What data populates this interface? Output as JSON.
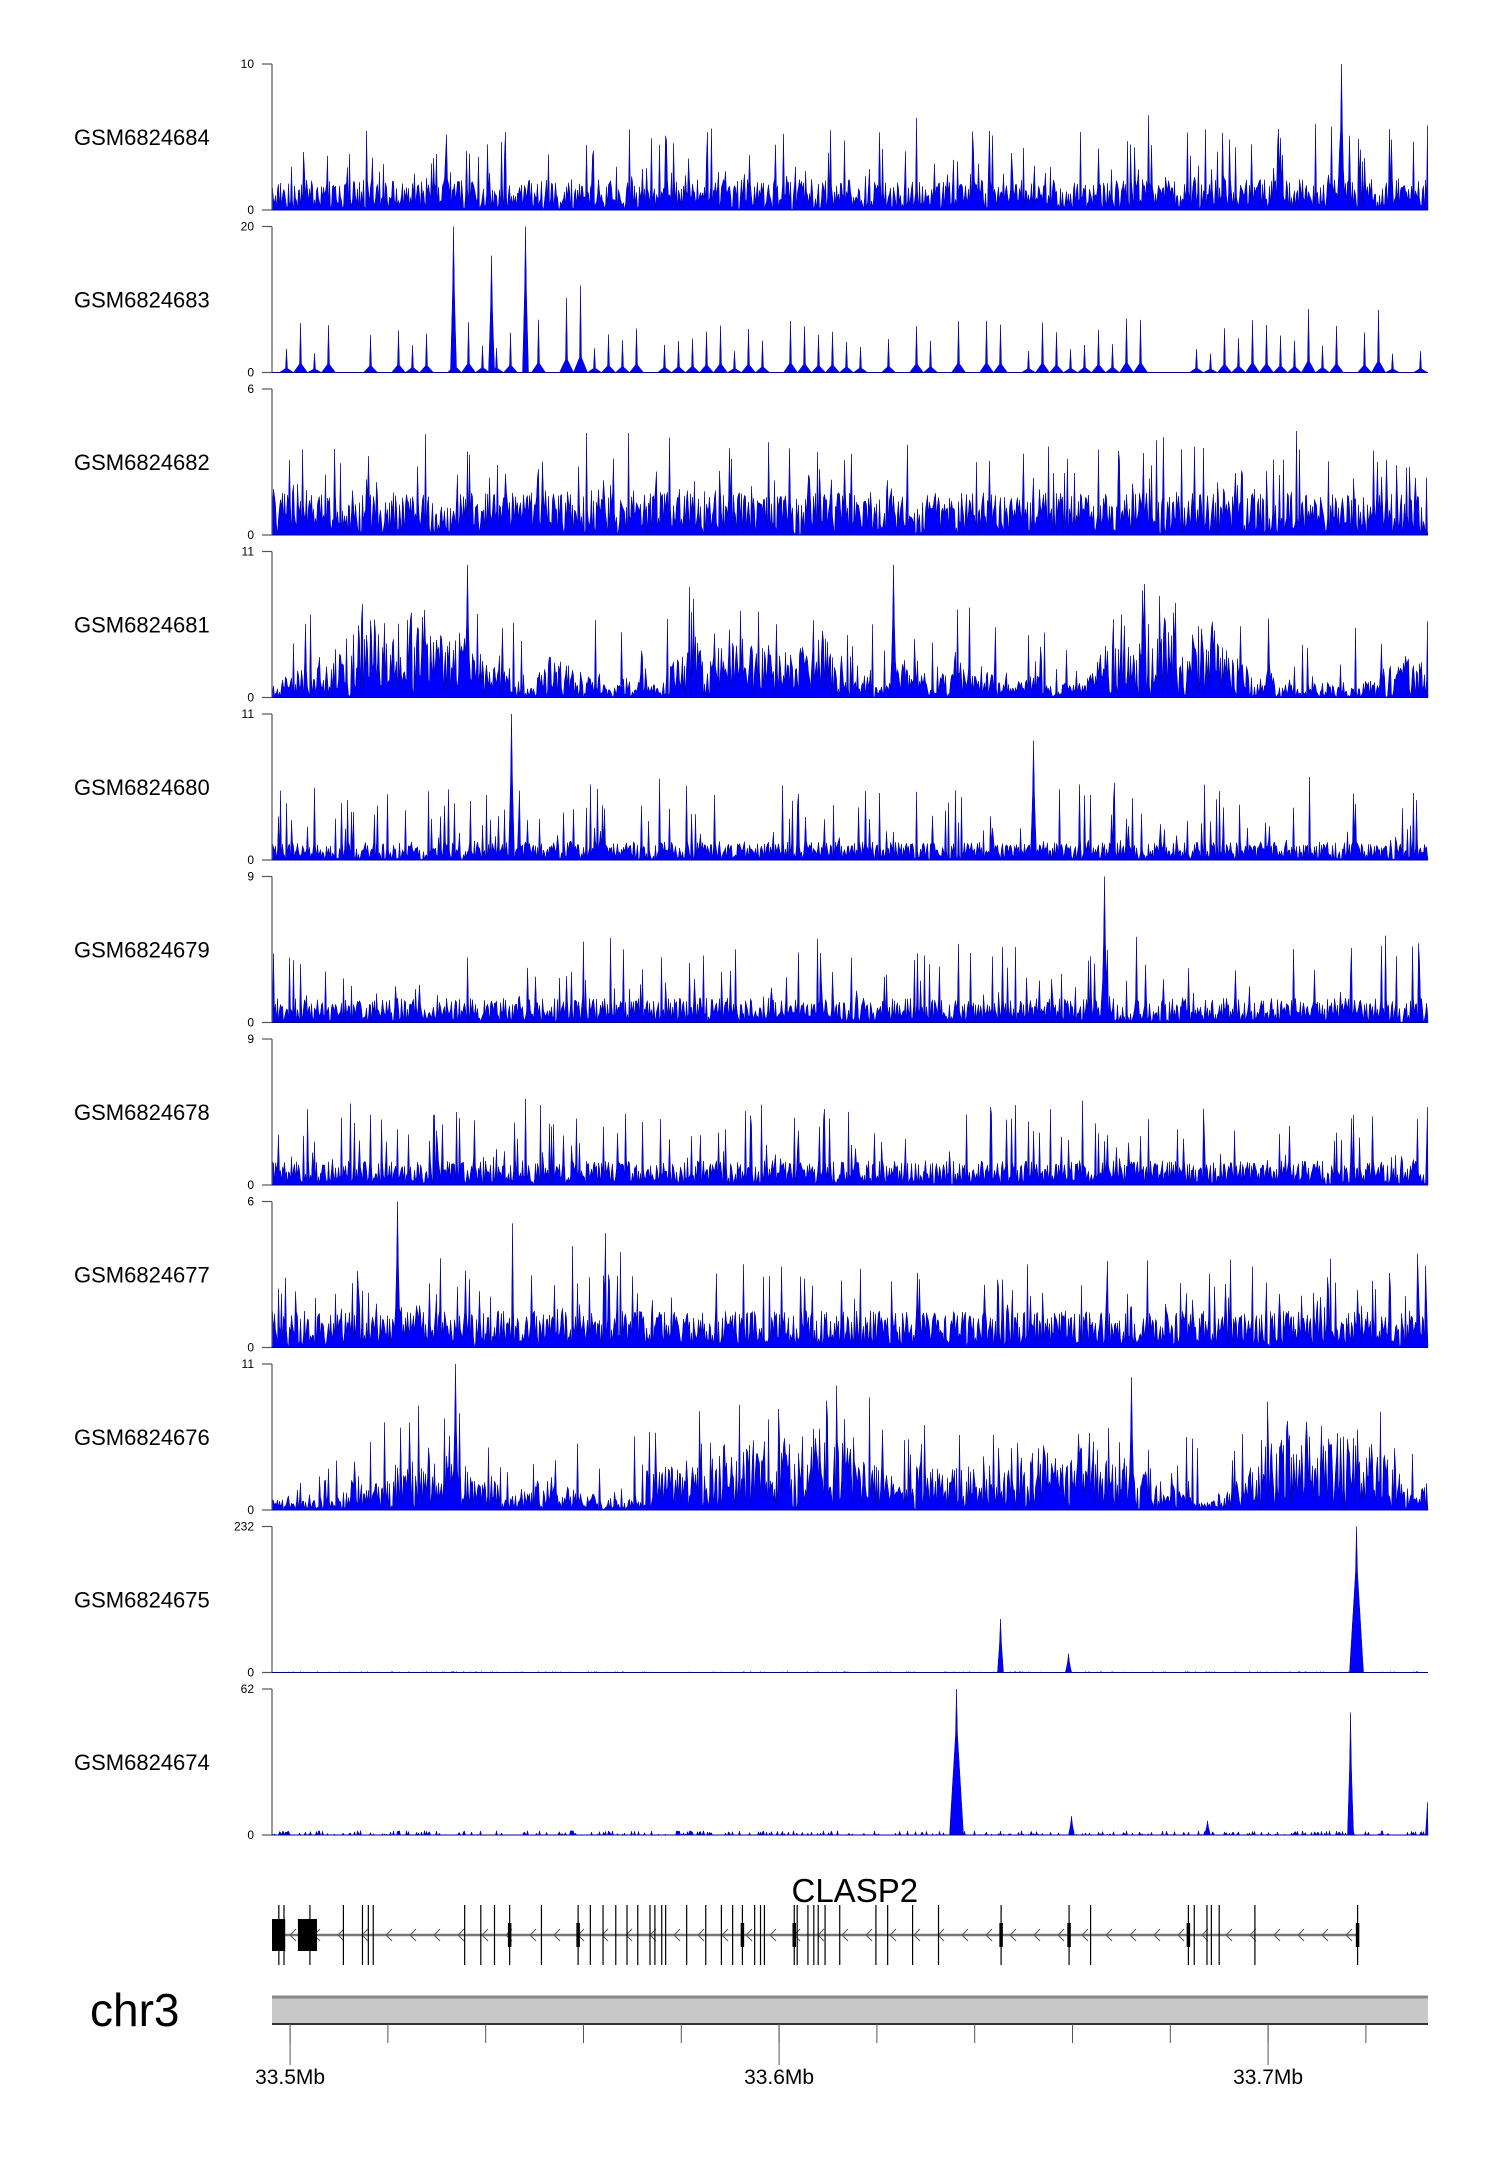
{
  "chart_data": {
    "type": "area",
    "title": "",
    "chromosome": "chr3",
    "gene": "CLASP2",
    "signal_color": "#0000ff",
    "xlim_mb": [
      33.4963,
      33.7327
    ],
    "x_ticks": [
      {
        "value": 33.5,
        "label": "33.5Mb"
      },
      {
        "value": 33.6,
        "label": "33.6Mb"
      },
      {
        "value": 33.7,
        "label": "33.7Mb"
      }
    ],
    "minor_tick_step_mb": 0.02,
    "tracks": [
      {
        "name": "GSM6824684",
        "ymax": 10,
        "ymin_label": "0",
        "ymax_label": "10",
        "style": "dense",
        "level": 0.25,
        "peaks": [
          {
            "x": 33.7149,
            "y": 10
          }
        ]
      },
      {
        "name": "GSM6824683",
        "ymax": 20,
        "ymin_label": "0",
        "ymax_label": "20",
        "style": "sparse",
        "level": 0.3,
        "peaks": [
          {
            "x": 33.5333,
            "y": 20
          },
          {
            "x": 33.548,
            "y": 20
          },
          {
            "x": 33.541,
            "y": 16
          }
        ]
      },
      {
        "name": "GSM6824682",
        "ymax": 6,
        "ymin_label": "0",
        "ymax_label": "6",
        "style": "dense",
        "level": 0.35,
        "peaks": []
      },
      {
        "name": "GSM6824681",
        "ymax": 11,
        "ymin_label": "0",
        "ymax_label": "11",
        "style": "broad",
        "level": 0.35,
        "peaks": [
          {
            "x": 33.5361,
            "y": 10
          },
          {
            "x": 33.6233,
            "y": 10
          }
        ]
      },
      {
        "name": "GSM6824680",
        "ymax": 11,
        "ymin_label": "0",
        "ymax_label": "11",
        "style": "dense",
        "level": 0.15,
        "peaks": [
          {
            "x": 33.5452,
            "y": 11
          },
          {
            "x": 33.652,
            "y": 9
          }
        ]
      },
      {
        "name": "GSM6824679",
        "ymax": 9,
        "ymin_label": "0",
        "ymax_label": "9",
        "style": "dense",
        "level": 0.2,
        "peaks": [
          {
            "x": 33.6665,
            "y": 9
          }
        ]
      },
      {
        "name": "GSM6824678",
        "ymax": 9,
        "ymin_label": "0",
        "ymax_label": "9",
        "style": "dense",
        "level": 0.2,
        "peaks": [
          {
            "x": 33.7327,
            "y": 9
          }
        ]
      },
      {
        "name": "GSM6824677",
        "ymax": 6,
        "ymin_label": "0",
        "ymax_label": "6",
        "style": "dense",
        "level": 0.3,
        "peaks": [
          {
            "x": 33.5219,
            "y": 6
          }
        ]
      },
      {
        "name": "GSM6824676",
        "ymax": 11,
        "ymin_label": "0",
        "ymax_label": "11",
        "style": "broad",
        "level": 0.3,
        "peaks": [
          {
            "x": 33.5338,
            "y": 11
          },
          {
            "x": 33.6719,
            "y": 10
          }
        ]
      },
      {
        "name": "GSM6824675",
        "ymax": 232,
        "ymin_label": "0",
        "ymax_label": "232",
        "style": "flat",
        "level": 0.004,
        "peaks": [
          {
            "x": 33.6452,
            "y": 85
          },
          {
            "x": 33.6591,
            "y": 30
          },
          {
            "x": 33.7179,
            "y": 232
          }
        ]
      },
      {
        "name": "GSM6824674",
        "ymax": 62,
        "ymin_label": "0",
        "ymax_label": "62",
        "style": "flat",
        "level": 0.02,
        "peaks": [
          {
            "x": 33.6361,
            "y": 62
          },
          {
            "x": 33.6597,
            "y": 8
          },
          {
            "x": 33.6875,
            "y": 6
          },
          {
            "x": 33.7168,
            "y": 52
          },
          {
            "x": 33.7327,
            "y": 26
          }
        ]
      }
    ],
    "gene_model": {
      "name": "CLASP2",
      "strand": "-",
      "start": 33.4963,
      "end": 33.7183,
      "thick_blocks": [
        [
          33.4963,
          33.499
        ],
        [
          33.5016,
          33.5055
        ]
      ],
      "exons": [
        33.4977,
        33.5109,
        33.5148,
        33.516,
        33.517,
        33.5357,
        33.539,
        33.5418,
        33.5449,
        33.5514,
        33.5589,
        33.5614,
        33.564,
        33.5666,
        33.5689,
        33.5711,
        33.5736,
        33.5746,
        33.576,
        33.5768,
        33.5811,
        33.585,
        33.5882,
        33.5905,
        33.5925,
        33.595,
        33.5962,
        33.597,
        33.6031,
        33.6037,
        33.6059,
        33.6071,
        33.608,
        33.6094,
        33.6124,
        33.6198,
        33.6222,
        33.6273,
        33.6326,
        33.6454,
        33.6593,
        33.6637,
        33.6837,
        33.6849,
        33.6875,
        33.6884,
        33.69,
        33.6973,
        33.7183
      ],
      "wide_exons": [
        33.5449,
        33.5589,
        33.5925,
        33.6031,
        33.6454,
        33.6593,
        33.6837,
        33.7183
      ]
    }
  }
}
